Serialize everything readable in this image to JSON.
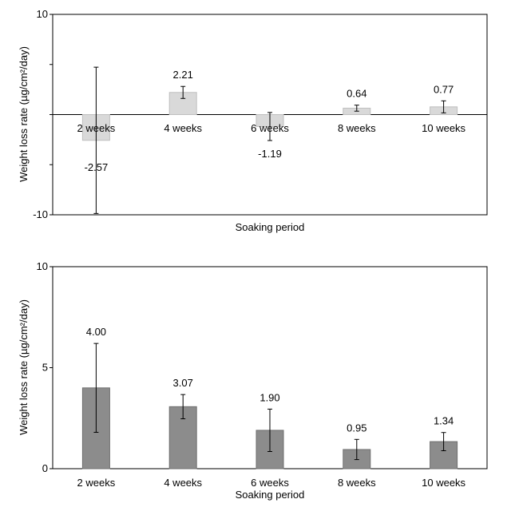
{
  "chart_data": [
    {
      "type": "bar",
      "categories": [
        "2 weeks",
        "4 weeks",
        "6 weeks",
        "8 weeks",
        "10 weeks"
      ],
      "values": [
        -2.57,
        2.21,
        -1.19,
        0.64,
        0.77
      ],
      "value_labels": [
        "-2.57",
        "2.21",
        "-1.19",
        "0.64",
        "0.77"
      ],
      "error": [
        7.3,
        0.6,
        1.4,
        0.3,
        0.6
      ],
      "title": "",
      "xlabel": "Soaking period",
      "ylabel": "Weight loss rate (µg/cm²/day)",
      "ylim": [
        -10,
        10
      ],
      "yticks": [
        "10",
        "-10"
      ],
      "grid": false,
      "bar_color": "#d9d9d9"
    },
    {
      "type": "bar",
      "categories": [
        "2 weeks",
        "4 weeks",
        "6 weeks",
        "8 weeks",
        "10 weeks"
      ],
      "values": [
        4.0,
        3.07,
        1.9,
        0.95,
        1.34
      ],
      "value_labels": [
        "4.00",
        "3.07",
        "1.90",
        "0.95",
        "1.34"
      ],
      "error": [
        2.2,
        0.6,
        1.05,
        0.5,
        0.45
      ],
      "title": "",
      "xlabel": "Soaking period",
      "ylabel": "Weight loss rate (µg/cm²/day)",
      "ylim": [
        0,
        10
      ],
      "yticks": [
        "0",
        "5",
        "10"
      ],
      "grid": false,
      "bar_color": "#8c8c8c"
    }
  ]
}
